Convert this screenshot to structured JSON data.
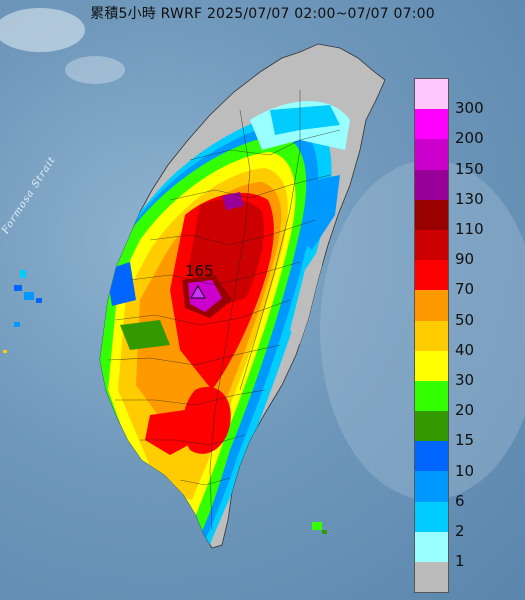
{
  "title": "累積5小時 RWRF 2025/07/07 02:00~07/07 07:00",
  "strait_label": "Formosa Strait",
  "peak_label": "165",
  "legend": {
    "items": [
      {
        "label": "300",
        "color": "#ffc8ff"
      },
      {
        "label": "200",
        "color": "#ff00ff"
      },
      {
        "label": "150",
        "color": "#cc00cc"
      },
      {
        "label": "130",
        "color": "#990099"
      },
      {
        "label": "110",
        "color": "#990000"
      },
      {
        "label": "90",
        "color": "#cc0000"
      },
      {
        "label": "70",
        "color": "#ff0000"
      },
      {
        "label": "50",
        "color": "#ff9900"
      },
      {
        "label": "40",
        "color": "#ffcc00"
      },
      {
        "label": "30",
        "color": "#ffff00"
      },
      {
        "label": "20",
        "color": "#33ff00"
      },
      {
        "label": "15",
        "color": "#339900"
      },
      {
        "label": "10",
        "color": "#0066ff"
      },
      {
        "label": "6",
        "color": "#0099ff"
      },
      {
        "label": "2",
        "color": "#00ccff"
      },
      {
        "label": "1",
        "color": "#99ffff"
      },
      {
        "label": "",
        "color": "#bbbbbb"
      }
    ]
  },
  "colors": {
    "sea": "#6f98bb",
    "no_rain": "#bdbdbd",
    "peak_marker": "#cc33ff"
  }
}
